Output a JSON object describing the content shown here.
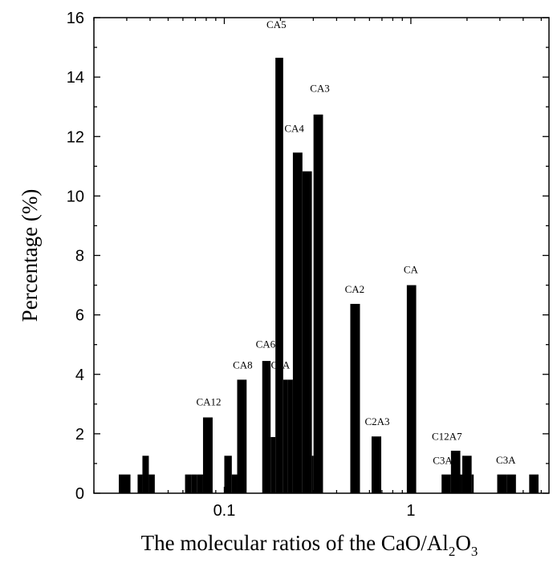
{
  "chart_data": {
    "type": "bar",
    "xlabel": "The molecular ratios of the CaO/Al2O3",
    "xlabel_main": "The molecular ratios of the CaO/Al",
    "xlabel_sub1": "2",
    "xlabel_mid": "O",
    "xlabel_sub2": "3",
    "ylabel": "Percentage (%)",
    "x_scale": "log",
    "xlim": [
      0.02,
      5.5
    ],
    "ylim": [
      0,
      16
    ],
    "x_ticks": [
      {
        "value": 0.1,
        "label": "0.1"
      },
      {
        "value": 1,
        "label": "1"
      }
    ],
    "y_ticks": [
      {
        "value": 0,
        "label": "0"
      },
      {
        "value": 2,
        "label": "2"
      },
      {
        "value": 4,
        "label": "4"
      },
      {
        "value": 6,
        "label": "6"
      },
      {
        "value": 8,
        "label": "8"
      },
      {
        "value": 10,
        "label": "10"
      },
      {
        "value": 12,
        "label": "12"
      },
      {
        "value": 14,
        "label": "14"
      },
      {
        "value": 16,
        "label": "16"
      }
    ],
    "bar_color": "#000000",
    "bars": [
      {
        "x0": 0.0272,
        "x1": 0.0314,
        "y": 0.63
      },
      {
        "x0": 0.0343,
        "x1": 0.0364,
        "y": 0.63
      },
      {
        "x0": 0.0364,
        "x1": 0.0394,
        "y": 1.26
      },
      {
        "x0": 0.0394,
        "x1": 0.0424,
        "y": 0.63
      },
      {
        "x0": 0.0616,
        "x1": 0.0665,
        "y": 0.63
      },
      {
        "x0": 0.0665,
        "x1": 0.0716,
        "y": 0.63
      },
      {
        "x0": 0.0716,
        "x1": 0.0769,
        "y": 0.63
      },
      {
        "x0": 0.0769,
        "x1": 0.0866,
        "y": 2.55
      },
      {
        "x0": 0.1,
        "x1": 0.1097,
        "y": 1.26
      },
      {
        "x0": 0.1097,
        "x1": 0.1172,
        "y": 0.63
      },
      {
        "x0": 0.1172,
        "x1": 0.1317,
        "y": 3.82
      },
      {
        "x0": 0.1597,
        "x1": 0.1771,
        "y": 4.45
      },
      {
        "x0": 0.1771,
        "x1": 0.1879,
        "y": 1.89
      },
      {
        "x0": 0.1879,
        "x1": 0.2068,
        "y": 14.65
      },
      {
        "x0": 0.2068,
        "x1": 0.2196,
        "y": 3.82
      },
      {
        "x0": 0.2196,
        "x1": 0.2331,
        "y": 3.82
      },
      {
        "x0": 0.2331,
        "x1": 0.2623,
        "y": 11.46
      },
      {
        "x0": 0.2623,
        "x1": 0.2948,
        "y": 10.83
      },
      {
        "x0": 0.2948,
        "x1": 0.3007,
        "y": 1.26
      },
      {
        "x0": 0.3007,
        "x1": 0.3381,
        "y": 12.74
      },
      {
        "x0": 0.4735,
        "x1": 0.5335,
        "y": 6.37
      },
      {
        "x0": 0.6157,
        "x1": 0.6938,
        "y": 1.91
      },
      {
        "x0": 0.9512,
        "x1": 1.068,
        "y": 7.0
      },
      {
        "x0": 1.461,
        "x1": 1.64,
        "y": 0.63
      },
      {
        "x0": 1.64,
        "x1": 1.841,
        "y": 1.43
      },
      {
        "x0": 1.841,
        "x1": 1.886,
        "y": 0.63
      },
      {
        "x0": 1.886,
        "x1": 2.117,
        "y": 1.26
      },
      {
        "x0": 2.117,
        "x1": 2.172,
        "y": 0.63
      },
      {
        "x0": 2.903,
        "x1": 3.259,
        "y": 0.63
      },
      {
        "x0": 3.259,
        "x1": 3.658,
        "y": 0.63
      },
      {
        "x0": 4.307,
        "x1": 4.834,
        "y": 0.63
      }
    ],
    "annotations": [
      {
        "text": "CA12",
        "x": 0.0825,
        "y": 2.95,
        "color": "#000000"
      },
      {
        "text": "CA8",
        "x": 0.1255,
        "y": 4.2,
        "color": "#000000"
      },
      {
        "text": "CA6",
        "x": 0.1665,
        "y": 4.9,
        "color": "#000000"
      },
      {
        "text": "C?A",
        "x": 0.2,
        "y": 4.2,
        "color": "#000000"
      },
      {
        "text": "CA5",
        "x": 0.19,
        "y": 15.65,
        "color": "#000000"
      },
      {
        "text": "CA4",
        "x": 0.237,
        "y": 12.15,
        "color": "#000000"
      },
      {
        "text": "CA3",
        "x": 0.325,
        "y": 13.5,
        "color": "#000000"
      },
      {
        "text": "CA2",
        "x": 0.5,
        "y": 6.75,
        "color": "#000000"
      },
      {
        "text": "C2A3",
        "x": 0.66,
        "y": 2.3,
        "color": "#000000"
      },
      {
        "text": "CA",
        "x": 1.0,
        "y": 7.4,
        "color": "#000000"
      },
      {
        "text": "C12A7",
        "x": 1.56,
        "y": 1.8,
        "color": "#e8141e"
      },
      {
        "text": "C3A",
        "x": 1.48,
        "y": 0.98,
        "color": "#000000"
      },
      {
        "text": "C3A",
        "x": 3.23,
        "y": 1.0,
        "color": "#e8141e"
      }
    ]
  }
}
